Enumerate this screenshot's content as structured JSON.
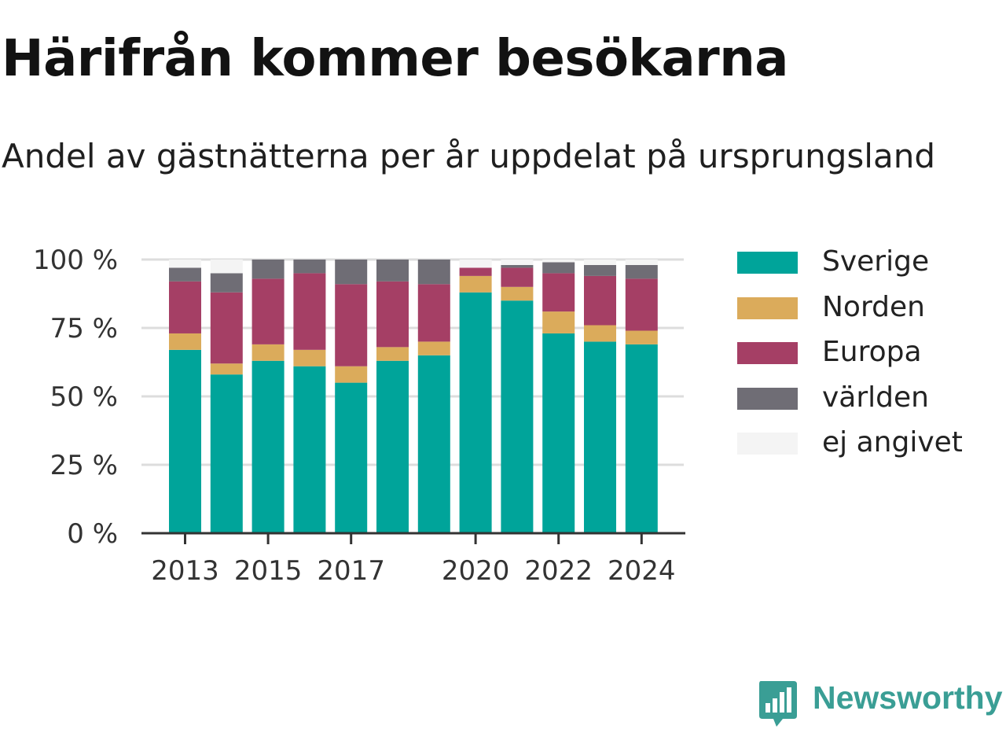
{
  "header": {
    "title": "Härifrån kommer besökarna",
    "subtitle": "Andel av gästnätterna per år uppdelat på ursprungsland"
  },
  "chart_data": {
    "type": "bar",
    "stacked": true,
    "title": "Härifrån kommer besökarna",
    "subtitle": "Andel av gästnätterna per år uppdelat på ursprungsland",
    "xlabel": "",
    "ylabel": "",
    "categories": [
      "2013",
      "2014",
      "2015",
      "2016",
      "2017",
      "2018",
      "2019",
      "2020",
      "2021",
      "2022",
      "2023",
      "2024"
    ],
    "x_tick_labels": [
      "2013",
      "2015",
      "2017",
      "2020",
      "2022",
      "2024"
    ],
    "y_ticks": [
      0,
      25,
      50,
      75,
      100
    ],
    "y_tick_labels": [
      "0 %",
      "25 %",
      "50 %",
      "75 %",
      "100 %"
    ],
    "ylim": [
      0,
      100
    ],
    "grid": true,
    "legend_position": "right",
    "series": [
      {
        "name": "Sverige",
        "color": "#00a49a",
        "values": [
          67,
          58,
          63,
          61,
          55,
          63,
          65,
          88,
          85,
          73,
          70,
          69
        ]
      },
      {
        "name": "Norden",
        "color": "#dbab5b",
        "values": [
          6,
          4,
          6,
          6,
          6,
          5,
          5,
          6,
          5,
          8,
          6,
          5
        ]
      },
      {
        "name": "Europa",
        "color": "#a53f65",
        "values": [
          19,
          26,
          24,
          28,
          30,
          24,
          21,
          3,
          7,
          14,
          18,
          19
        ]
      },
      {
        "name": "världen",
        "color": "#6f6d75",
        "values": [
          5,
          7,
          7,
          5,
          9,
          8,
          9,
          0,
          1,
          4,
          4,
          5
        ]
      },
      {
        "name": "ej angivet",
        "color": "#f4f4f4",
        "values": [
          3,
          5,
          0,
          0,
          0,
          0,
          0,
          3,
          2,
          1,
          2,
          2
        ]
      }
    ]
  },
  "brand": {
    "name": "Newsworthy",
    "color": "#3a9e95",
    "icon": "newsworthy-logo-icon"
  }
}
